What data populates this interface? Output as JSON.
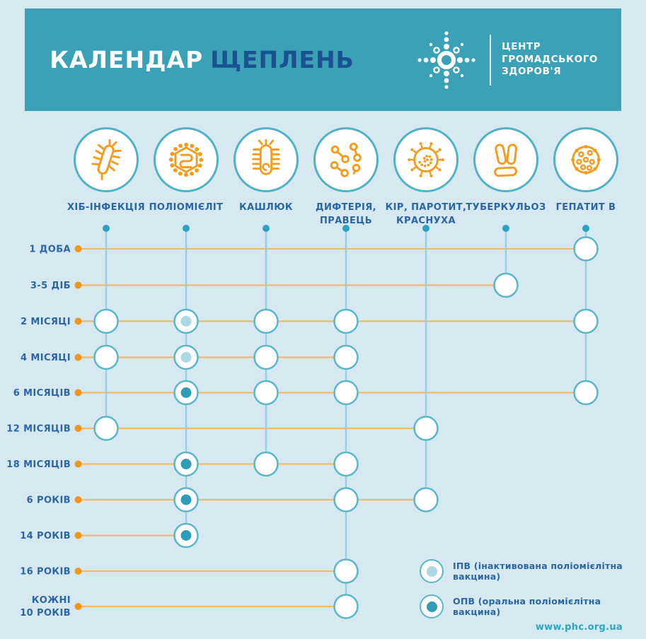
{
  "title": {
    "word1": "КАЛЕНДАР",
    "word2": "ЩЕПЛЕНЬ"
  },
  "logo": {
    "org_name": "ЦЕНТР\nГРОМАДСЬКОГО\nЗДОРОВ'Я"
  },
  "footer": {
    "url": "www.phc.org.ua"
  },
  "colors": {
    "background": "#d6e9f0",
    "header_teal": "#3aa1b7",
    "title_blue": "#1c5191",
    "label_blue": "#2b66a4",
    "icon_orange": "#f59c1f",
    "age_dot_orange": "#f0951e",
    "age_line_orange": "#efba69",
    "column_line_teal": "#97cfdf",
    "column_dot_teal": "#2ba2bf",
    "marker_border": "#5ab6c9",
    "ipv_dot": "#abd8e5",
    "opv_dot": "#2d9db8"
  },
  "chart_data": {
    "type": "table",
    "title": "КАЛЕНДАР ЩЕПЛЕНЬ (національний календар профілактичних щеплень)",
    "columns": [
      {
        "id": "hib",
        "label": "ХІБ-ІНФЕКЦІЯ",
        "icon": "hib-bacterium-icon"
      },
      {
        "id": "polio",
        "label": "ПОЛІОМІЄЛІТ",
        "icon": "polio-virus-icon"
      },
      {
        "id": "pertussis",
        "label": "КАШЛЮК",
        "icon": "pertussis-bacterium-icon"
      },
      {
        "id": "diphtheria_tetanus",
        "label": "ДИФТЕРІЯ,\nПРАВЕЦЬ",
        "icon": "diphtheria-bacteria-icon"
      },
      {
        "id": "measles_mumps_rubella",
        "label": "КІР, ПАРОТИТ,\nКРАСНУХА",
        "icon": "measles-virus-icon"
      },
      {
        "id": "tuberculosis",
        "label": "ТУБЕРКУЛЬОЗ",
        "icon": "tuberculosis-bacteria-icon"
      },
      {
        "id": "hepatitis_b",
        "label": "ГЕПАТИТ В",
        "icon": "hepatitis-b-virus-icon"
      }
    ],
    "rows": [
      {
        "label": "1 ДОБА",
        "doses": [
          {
            "column": 6,
            "marker": "plain"
          }
        ]
      },
      {
        "label": "3-5 ДІБ",
        "doses": [
          {
            "column": 5,
            "marker": "plain"
          }
        ]
      },
      {
        "label": "2 МІСЯЦІ",
        "doses": [
          {
            "column": 0,
            "marker": "plain"
          },
          {
            "column": 1,
            "marker": "ipv"
          },
          {
            "column": 2,
            "marker": "plain"
          },
          {
            "column": 3,
            "marker": "plain"
          },
          {
            "column": 6,
            "marker": "plain"
          }
        ]
      },
      {
        "label": "4 МІСЯЦІ",
        "doses": [
          {
            "column": 0,
            "marker": "plain"
          },
          {
            "column": 1,
            "marker": "ipv"
          },
          {
            "column": 2,
            "marker": "plain"
          },
          {
            "column": 3,
            "marker": "plain"
          }
        ]
      },
      {
        "label": "6 МІСЯЦІВ",
        "doses": [
          {
            "column": 1,
            "marker": "opv"
          },
          {
            "column": 2,
            "marker": "plain"
          },
          {
            "column": 3,
            "marker": "plain"
          },
          {
            "column": 6,
            "marker": "plain"
          }
        ]
      },
      {
        "label": "12 МІСЯЦІВ",
        "doses": [
          {
            "column": 0,
            "marker": "plain"
          },
          {
            "column": 4,
            "marker": "plain"
          }
        ]
      },
      {
        "label": "18 МІСЯЦІВ",
        "doses": [
          {
            "column": 1,
            "marker": "opv"
          },
          {
            "column": 2,
            "marker": "plain"
          },
          {
            "column": 3,
            "marker": "plain"
          }
        ]
      },
      {
        "label": "6 РОКІВ",
        "doses": [
          {
            "column": 1,
            "marker": "opv"
          },
          {
            "column": 3,
            "marker": "plain"
          },
          {
            "column": 4,
            "marker": "plain"
          }
        ]
      },
      {
        "label": "14 РОКІВ",
        "doses": [
          {
            "column": 1,
            "marker": "opv"
          }
        ]
      },
      {
        "label": "16 РОКІВ",
        "doses": [
          {
            "column": 3,
            "marker": "plain"
          }
        ]
      },
      {
        "label": "КОЖНІ\n10 РОКІВ",
        "doses": [
          {
            "column": 3,
            "marker": "plain"
          }
        ]
      }
    ],
    "legend": [
      {
        "marker": "ipv",
        "label": "ІПВ (інактивована поліомієлітна вакцина)"
      },
      {
        "marker": "opv",
        "label": "ОПВ (оральна поліомієлітна вакцина)"
      }
    ]
  }
}
